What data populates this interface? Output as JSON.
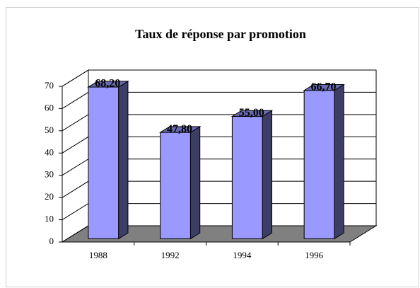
{
  "chart_data": {
    "type": "bar3d",
    "title": "Taux de réponse par promotion",
    "categories": [
      "1988",
      "1992",
      "1994",
      "1996"
    ],
    "values": [
      68.2,
      47.8,
      55.0,
      66.7
    ],
    "value_labels": [
      "68,20",
      "47,80",
      "55,00",
      "66,70"
    ],
    "color": "#9999ff",
    "ylim": [
      0,
      70
    ],
    "yticks": [
      0,
      10,
      20,
      30,
      40,
      50,
      60,
      70
    ],
    "grid": true
  }
}
